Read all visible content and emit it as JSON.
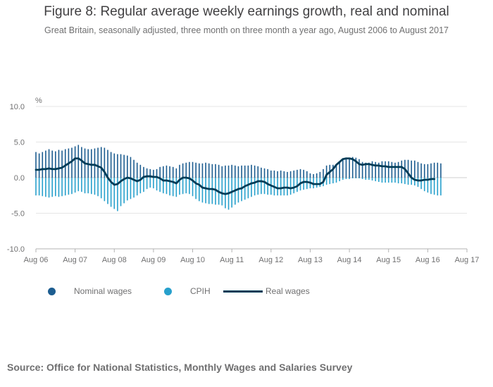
{
  "header": {
    "title": "Figure 8: Regular average weekly earnings growth, real and nominal",
    "subtitle": "Great Britain, seasonally adjusted, three month on three month a year ago, August 2006 to August 2017"
  },
  "source": "Source: Office for National Statistics, Monthly Wages and Salaries Survey",
  "colors": {
    "nominal": "#1d5d90",
    "cpih": "#27a0cc",
    "real": "#003c57",
    "axis": "#b3b3b3",
    "grid": "#e6e6e6"
  },
  "chart_data": {
    "type": "bar-line",
    "title": "Figure 8: Regular average weekly earnings growth, real and nominal",
    "ylabel": "%",
    "ylim": [
      -10,
      10
    ],
    "yticks": [
      "10.0",
      "5.0",
      "0.0",
      "-5.0",
      "-10.0"
    ],
    "ytick_values": [
      10,
      5,
      0,
      -5,
      -10
    ],
    "xticks": [
      "Aug 06",
      "Aug 07",
      "Aug 08",
      "Aug 09",
      "Aug 10",
      "Aug 11",
      "Aug 12",
      "Aug 13",
      "Aug 14",
      "Aug 15",
      "Aug 16",
      "Aug 17"
    ],
    "x_start": "Aug 2006",
    "x_end": "Aug 2017",
    "months": 133,
    "series": [
      {
        "name": "Nominal wages",
        "kind": "bar",
        "values": [
          3.6,
          3.4,
          3.6,
          3.8,
          4.0,
          3.8,
          3.7,
          3.9,
          3.8,
          4.0,
          4.1,
          4.2,
          4.4,
          4.6,
          4.3,
          4.1,
          4.0,
          4.0,
          4.1,
          4.2,
          4.3,
          4.2,
          3.9,
          3.6,
          3.4,
          3.3,
          3.3,
          3.2,
          3.1,
          2.9,
          2.5,
          2.1,
          1.8,
          1.5,
          1.3,
          1.2,
          1.1,
          1.2,
          1.5,
          1.6,
          1.7,
          1.6,
          1.5,
          1.3,
          1.8,
          2.0,
          2.1,
          2.2,
          2.2,
          2.1,
          2.0,
          2.0,
          2.1,
          2.0,
          1.9,
          1.9,
          1.8,
          1.6,
          1.7,
          1.7,
          1.8,
          1.7,
          1.6,
          1.7,
          1.7,
          1.7,
          1.8,
          1.7,
          1.6,
          1.4,
          1.3,
          1.2,
          1.0,
          1.0,
          0.9,
          1.0,
          0.9,
          0.8,
          0.9,
          1.0,
          1.1,
          1.2,
          1.1,
          0.9,
          0.6,
          0.5,
          0.6,
          0.8,
          1.2,
          1.7,
          1.8,
          1.8,
          1.9,
          2.2,
          2.6,
          2.7,
          2.8,
          2.9,
          2.8,
          2.6,
          2.2,
          2.1,
          2.1,
          2.3,
          2.2,
          2.1,
          2.3,
          2.3,
          2.3,
          2.2,
          2.1,
          2.2,
          2.4,
          2.5,
          2.5,
          2.4,
          2.4,
          2.2,
          2.0,
          1.9,
          1.9,
          2.0,
          2.1,
          2.1,
          2.0
        ]
      },
      {
        "name": "CPIH",
        "kind": "bar",
        "values": [
          -2.5,
          -2.5,
          -2.6,
          -2.7,
          -2.8,
          -2.7,
          -2.6,
          -2.7,
          -2.6,
          -2.5,
          -2.4,
          -2.3,
          -2.1,
          -1.9,
          -2.0,
          -2.2,
          -2.2,
          -2.3,
          -2.4,
          -2.6,
          -2.9,
          -3.3,
          -3.7,
          -4.1,
          -4.4,
          -4.7,
          -4.0,
          -3.6,
          -3.2,
          -3.0,
          -2.8,
          -2.5,
          -2.2,
          -2.0,
          -1.6,
          -1.4,
          -1.5,
          -1.8,
          -2.0,
          -2.2,
          -2.3,
          -2.5,
          -2.6,
          -2.7,
          -2.4,
          -2.3,
          -2.2,
          -2.3,
          -2.6,
          -3.0,
          -3.3,
          -3.5,
          -3.6,
          -3.7,
          -3.7,
          -3.8,
          -3.8,
          -3.9,
          -4.3,
          -4.5,
          -4.2,
          -3.8,
          -3.5,
          -3.3,
          -3.1,
          -2.9,
          -2.7,
          -2.5,
          -2.4,
          -2.3,
          -2.3,
          -2.4,
          -2.4,
          -2.5,
          -2.5,
          -2.5,
          -2.5,
          -2.5,
          -2.4,
          -2.2,
          -2.0,
          -1.8,
          -1.7,
          -1.6,
          -1.5,
          -1.5,
          -1.4,
          -1.3,
          -1.2,
          -1.0,
          -0.9,
          -0.8,
          -0.7,
          -0.5,
          -0.3,
          -0.2,
          -0.2,
          -0.1,
          -0.1,
          -0.1,
          -0.2,
          -0.3,
          -0.3,
          -0.4,
          -0.5,
          -0.6,
          -0.7,
          -0.7,
          -0.7,
          -0.7,
          -0.7,
          -0.8,
          -0.8,
          -0.9,
          -1.0,
          -1.0,
          -1.1,
          -1.3,
          -1.6,
          -1.9,
          -2.1,
          -2.3,
          -2.4,
          -2.5,
          -2.5
        ]
      },
      {
        "name": "Real wages",
        "kind": "line",
        "values": [
          1.1,
          1.1,
          1.2,
          1.2,
          1.3,
          1.2,
          1.2,
          1.3,
          1.4,
          1.7,
          2.0,
          2.3,
          2.7,
          2.7,
          2.4,
          2.0,
          1.9,
          1.8,
          1.8,
          1.6,
          1.4,
          0.8,
          0.0,
          -0.6,
          -1.0,
          -0.9,
          -0.5,
          -0.2,
          0.0,
          -0.1,
          -0.3,
          -0.5,
          -0.3,
          0.1,
          0.2,
          0.2,
          0.1,
          0.1,
          -0.1,
          -0.4,
          -0.4,
          -0.5,
          -0.6,
          -0.8,
          -0.3,
          0.0,
          0.0,
          -0.1,
          -0.4,
          -0.8,
          -1.0,
          -1.4,
          -1.5,
          -1.6,
          -1.6,
          -1.7,
          -2.0,
          -2.2,
          -2.3,
          -2.2,
          -2.0,
          -1.8,
          -1.6,
          -1.5,
          -1.2,
          -1.0,
          -0.8,
          -0.7,
          -0.5,
          -0.5,
          -0.6,
          -0.9,
          -1.1,
          -1.3,
          -1.5,
          -1.5,
          -1.4,
          -1.4,
          -1.5,
          -1.4,
          -1.2,
          -0.8,
          -0.6,
          -0.6,
          -0.7,
          -0.9,
          -0.9,
          -0.9,
          -0.6,
          0.4,
          0.8,
          1.2,
          1.8,
          2.2,
          2.6,
          2.7,
          2.7,
          2.6,
          2.3,
          1.9,
          1.8,
          1.9,
          1.9,
          1.8,
          1.7,
          1.7,
          1.6,
          1.6,
          1.5,
          1.5,
          1.5,
          1.5,
          1.5,
          1.2,
          0.6,
          0.0,
          -0.3,
          -0.4,
          -0.4,
          -0.3,
          -0.3,
          -0.2,
          -0.2
        ]
      }
    ],
    "legend": [
      {
        "label": "Nominal wages",
        "symbol": "dot",
        "color": "#1d5d90"
      },
      {
        "label": "CPIH",
        "symbol": "dot",
        "color": "#27a0cc"
      },
      {
        "label": "Real wages",
        "symbol": "line",
        "color": "#003c57"
      }
    ]
  }
}
